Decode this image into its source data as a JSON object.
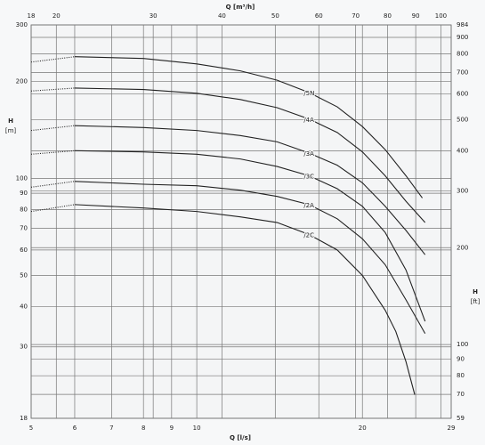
{
  "chart_data": {
    "type": "line",
    "x_label": "Q [l/s]",
    "x2_label": "Q [m³/h]",
    "y_label": "H",
    "y_unit": "[m]",
    "y2_label": "H",
    "y2_unit": "[ft]",
    "log_x": true,
    "log_y": true,
    "grid": true,
    "color": "#222222",
    "xlim": [
      5,
      29
    ],
    "xticks": [
      5,
      6,
      7,
      8,
      9,
      10,
      20,
      29
    ],
    "x2lim": [
      18,
      104.4
    ],
    "x2ticks": [
      18,
      20,
      30,
      40,
      50,
      60,
      70,
      80,
      90,
      100
    ],
    "ylim": [
      18,
      300
    ],
    "yticks": [
      18,
      30,
      40,
      50,
      60,
      70,
      80,
      90,
      100,
      200,
      300
    ],
    "y2lim": [
      59,
      984
    ],
    "y2ticks": [
      59,
      70,
      80,
      90,
      100,
      200,
      300,
      400,
      500,
      600,
      700,
      800,
      900,
      984
    ],
    "series": [
      {
        "name": "/5N",
        "x": [
          5,
          6,
          8,
          10,
          12,
          14,
          16,
          18,
          20,
          22,
          24,
          25.7
        ],
        "values": [
          230,
          239,
          236,
          227,
          216,
          202,
          185,
          167,
          145,
          123,
          102,
          87
        ]
      },
      {
        "name": "/4A",
        "x": [
          5,
          6,
          8,
          10,
          12,
          14,
          16,
          18,
          20,
          22,
          24,
          26
        ],
        "values": [
          187,
          191,
          189,
          184,
          176,
          166,
          153,
          139,
          121,
          102,
          85,
          73
        ]
      },
      {
        "name": "/3A",
        "x": [
          5,
          6,
          8,
          10,
          12,
          14,
          16,
          18,
          20,
          22,
          24,
          26
        ],
        "values": [
          141,
          146,
          144,
          141,
          136,
          130,
          120,
          110,
          97,
          82,
          69,
          58
        ]
      },
      {
        "name": "/3C",
        "x": [
          5,
          6,
          8,
          10,
          12,
          14,
          16,
          18,
          20,
          22,
          24,
          26
        ],
        "values": [
          119,
          122,
          121,
          119,
          115,
          109,
          102,
          93,
          82,
          68,
          52,
          36
        ]
      },
      {
        "name": "/2A",
        "x": [
          5,
          6,
          8,
          10,
          12,
          14,
          16,
          18,
          20,
          22,
          24,
          26
        ],
        "values": [
          94,
          98,
          96,
          95,
          92,
          88,
          83,
          75,
          65,
          54,
          42,
          33
        ]
      },
      {
        "name": "/2C",
        "x": [
          5,
          6,
          8,
          10,
          12,
          14,
          16,
          18,
          20,
          22,
          23,
          24,
          24.9
        ],
        "values": [
          79,
          83,
          81,
          79,
          76,
          73,
          67,
          60,
          50,
          39,
          33.5,
          27,
          21.3
        ]
      }
    ]
  }
}
